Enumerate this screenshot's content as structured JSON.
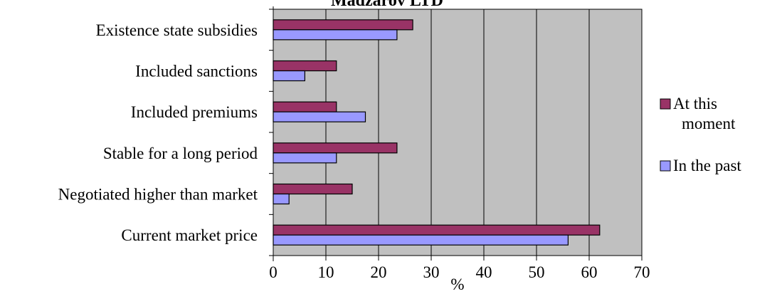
{
  "chart_data": {
    "type": "bar",
    "orientation": "horizontal",
    "title": "Madzarov  LTD",
    "xlabel": "%",
    "ylabel": "",
    "xlim": [
      0,
      70
    ],
    "xticks": [
      0,
      10,
      20,
      30,
      40,
      50,
      60,
      70
    ],
    "grid": true,
    "legend_position": "right",
    "categories": [
      "Existence state subsidies",
      "Included sanctions",
      "Included premiums",
      "Stable for a long period",
      "Negotiated higher than market",
      "Current market price"
    ],
    "series": [
      {
        "name": "At this moment",
        "color": "#993366",
        "values": [
          26.5,
          12,
          12,
          23.5,
          15,
          62
        ]
      },
      {
        "name": "In the past",
        "color": "#9999ff",
        "values": [
          23.5,
          6,
          17.5,
          12,
          3,
          56
        ]
      }
    ],
    "plot_background": "#c0c0c0",
    "legend_lines": {
      "At this moment": [
        "At this",
        "moment"
      ],
      "In the past": [
        "In the past"
      ]
    }
  }
}
